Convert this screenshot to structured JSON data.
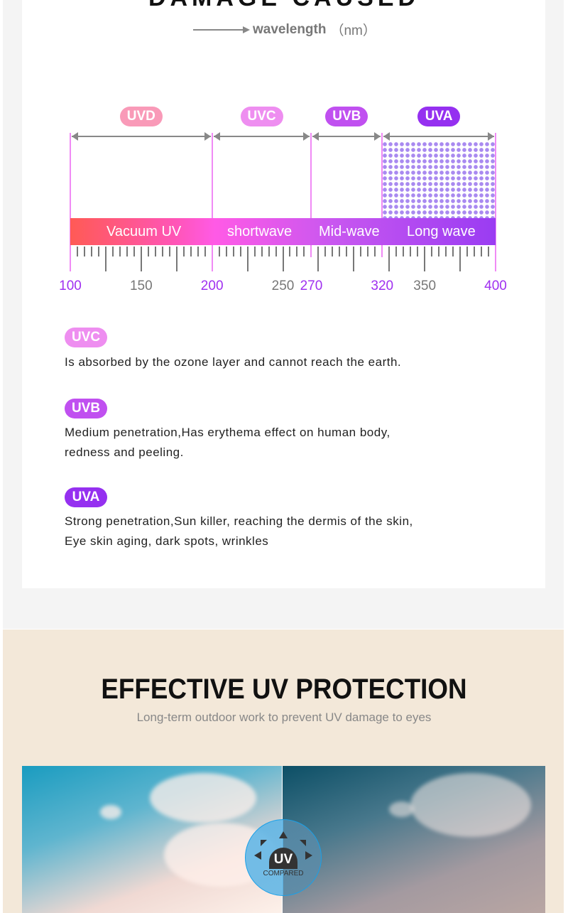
{
  "top_title": "DAMAGE CAUSED",
  "axis_label": {
    "word": "wavelength",
    "unit": "（nm）"
  },
  "chart_data": {
    "type": "spectrum-ruler",
    "x_range": [
      100,
      400
    ],
    "x_unit": "nm",
    "tick_labels": [
      {
        "value": 100,
        "label": "100",
        "highlight": true
      },
      {
        "value": 150,
        "label": "150",
        "highlight": false
      },
      {
        "value": 200,
        "label": "200",
        "highlight": true
      },
      {
        "value": 250,
        "label": "250",
        "highlight": false
      },
      {
        "value": 270,
        "label": "270",
        "highlight": true
      },
      {
        "value": 320,
        "label": "320",
        "highlight": true
      },
      {
        "value": 350,
        "label": "350",
        "highlight": false
      },
      {
        "value": 400,
        "label": "400",
        "highlight": true
      }
    ],
    "minor_tick_step": 5,
    "major_tick_step": 25,
    "ranges": [
      {
        "name": "UVD",
        "from": 100,
        "to": 200,
        "color": "#f99ab8",
        "band_label": "Vacuum UV"
      },
      {
        "name": "UVC",
        "from": 200,
        "to": 270,
        "color": "#ee8ef0",
        "band_label": "shortwave"
      },
      {
        "name": "UVB",
        "from": 270,
        "to": 320,
        "color": "#c050f0",
        "band_label": "Mid-wave"
      },
      {
        "name": "UVA",
        "from": 320,
        "to": 400,
        "color": "#9530f0",
        "band_label": "Long wave",
        "patterned": true
      }
    ],
    "colors": {
      "highlight_label": "#a030f0",
      "plain_label": "#777777",
      "boundary": "#f08af5"
    }
  },
  "descriptions": [
    {
      "tag": "UVC",
      "color": "#ee8ef0",
      "lines": [
        "Is absorbed by the ozone layer and cannot reach the earth."
      ]
    },
    {
      "tag": "UVB",
      "color": "#c050f0",
      "lines": [
        "Medium penetration,Has erythema effect on human body,",
        "redness and peeling."
      ]
    },
    {
      "tag": "UVA",
      "color": "#9530f0",
      "lines": [
        "Strong penetration,Sun killer, reaching the dermis of the skin,",
        "Eye skin aging, dark spots, wrinkles"
      ]
    }
  ],
  "protection": {
    "title": "EFFECTIVE UV PROTECTION",
    "subtitle": "Long-term outdoor work to prevent UV damage to eyes",
    "badge": {
      "main": "UV",
      "sub": "COMPARED"
    }
  }
}
